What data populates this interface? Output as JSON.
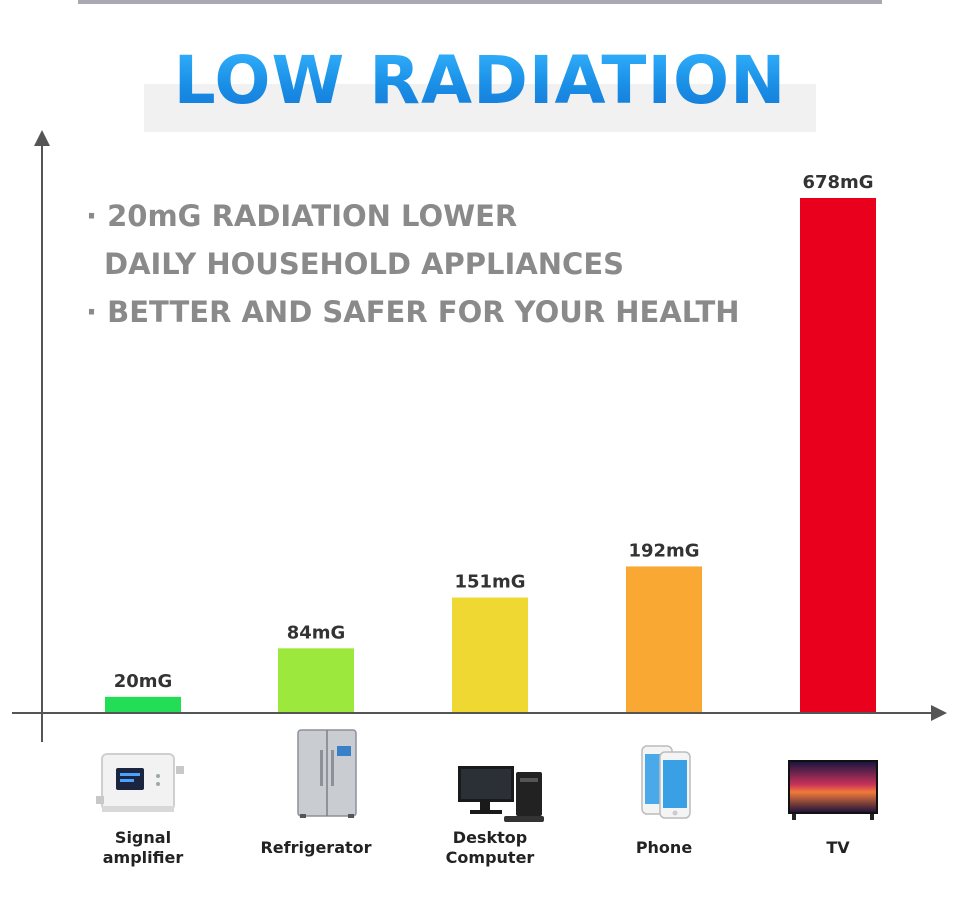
{
  "title": "LOW RADIATION",
  "notes": {
    "line1": "· 20mG RADIATION LOWER",
    "line2": "DAILY HOUSEHOLD APPLIANCES",
    "line3": "· BETTER AND SAFER FOR YOUR HEALTH"
  },
  "chart_data": {
    "type": "bar",
    "categories": [
      "Signal\namplifier",
      "Refrigerator",
      "Desktop\nComputer",
      "Phone",
      "TV"
    ],
    "values": [
      20,
      84,
      151,
      192,
      678
    ],
    "data_labels": [
      "20mG",
      "84mG",
      "151mG",
      "192mG",
      "678mG"
    ],
    "colors": [
      "#22dd55",
      "#9de83c",
      "#f0d832",
      "#f9a834",
      "#e8001c"
    ],
    "grid": false
  },
  "icons": [
    "signal-amplifier-icon",
    "refrigerator-icon",
    "desktop-computer-icon",
    "phone-icon",
    "tv-icon"
  ]
}
